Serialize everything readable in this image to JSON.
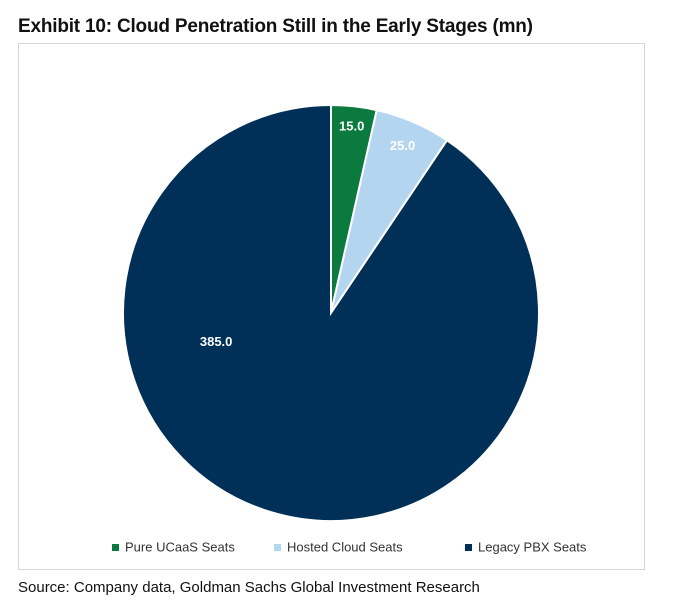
{
  "title": "Exhibit 10: Cloud Penetration Still in the Early Stages (mn)",
  "source": "Source: Company data, Goldman Sachs Global Investment Research",
  "chart_data": {
    "type": "pie",
    "title": "Exhibit 10: Cloud Penetration Still in the Early Stages (mn)",
    "legend_position": "bottom",
    "start_angle": "12 o'clock, clockwise",
    "slices": [
      {
        "name": "Pure UCaaS Seats",
        "value": 15.0,
        "label": "15.0",
        "color": "#0b7a3e",
        "label_color": "#ffffff"
      },
      {
        "name": "Hosted Cloud Seats",
        "value": 25.0,
        "label": "25.0",
        "color": "#b3d5f0",
        "label_color": "#ffffff"
      },
      {
        "name": "Legacy PBX Seats",
        "value": 385.0,
        "label": "385.0",
        "color": "#003058",
        "label_color": "#ffffff"
      }
    ]
  }
}
